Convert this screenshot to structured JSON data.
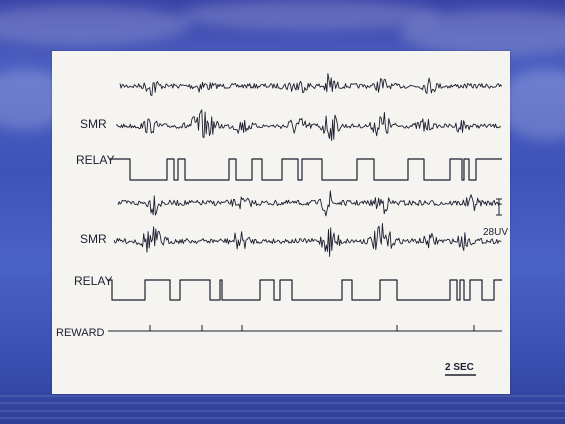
{
  "figure": {
    "labels": {
      "smr_top": "SMR",
      "relay_top": "RELAY",
      "smr_bottom": "SMR",
      "relay_bottom": "RELAY",
      "reward": "REWARD",
      "scale_amplitude": "28UV",
      "scale_time": "2 SEC"
    }
  }
}
